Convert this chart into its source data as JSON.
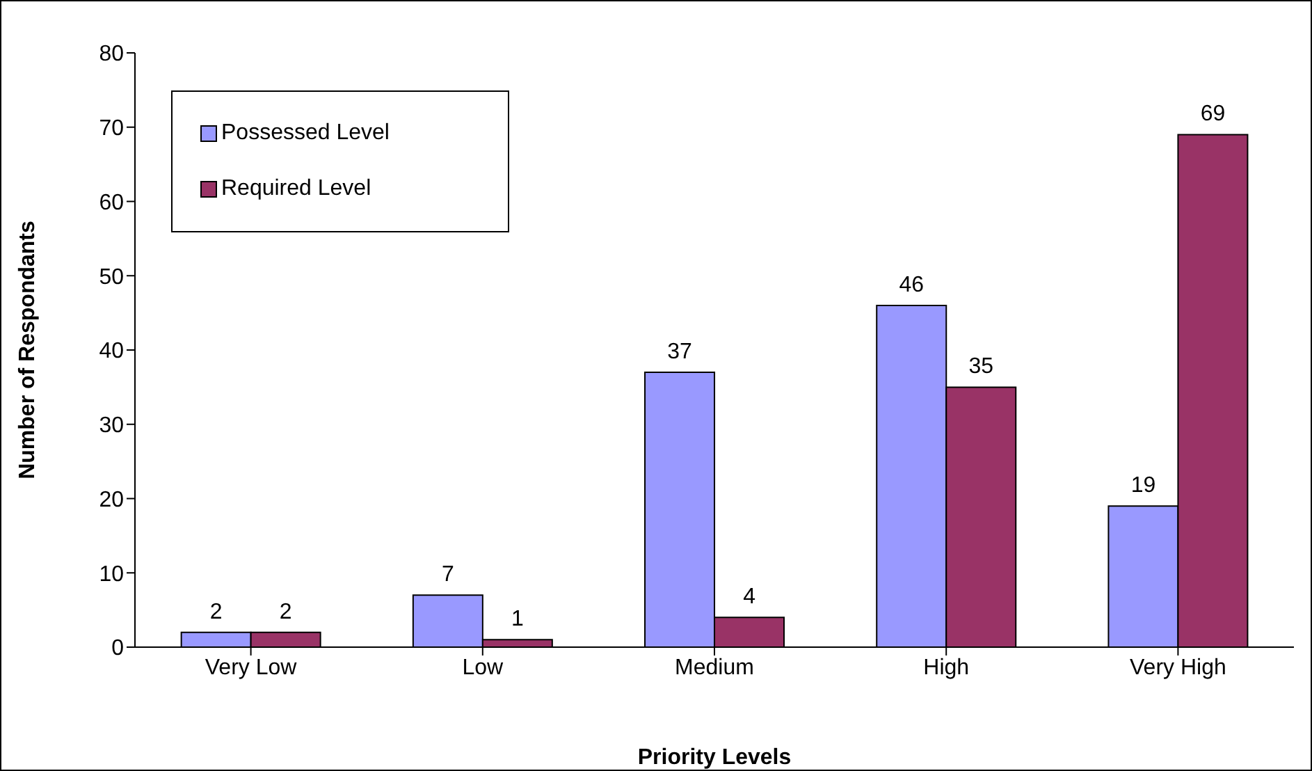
{
  "chart_data": {
    "type": "bar",
    "xlabel": "Priority Levels",
    "ylabel": "Number of Respondants",
    "categories": [
      "Very Low",
      "Low",
      "Medium",
      "High",
      "Very High"
    ],
    "series": [
      {
        "name": "Possessed Level",
        "color": "#9999ff",
        "values": [
          2,
          7,
          37,
          46,
          19
        ]
      },
      {
        "name": "Required Level",
        "color": "#993366",
        "values": [
          2,
          1,
          4,
          35,
          69
        ]
      }
    ],
    "ylim": [
      0,
      80
    ],
    "yticks": [
      0,
      10,
      20,
      30,
      40,
      50,
      60,
      70,
      80
    ],
    "data_labels": true,
    "legend": "top left",
    "grid": false
  }
}
